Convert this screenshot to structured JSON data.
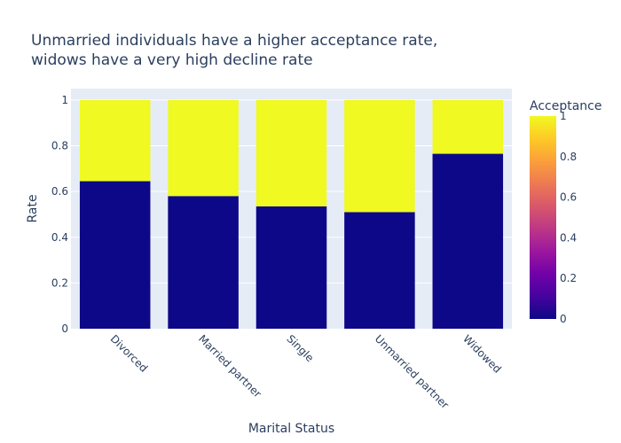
{
  "chart_data": {
    "type": "bar",
    "stacked": true,
    "title_lines": [
      "Unmarried individuals have a higher acceptance rate,",
      "widows have a very high decline rate"
    ],
    "xlabel": "Marital Status",
    "ylabel": "Rate",
    "ylim": [
      0,
      1.05
    ],
    "y_ticks": [
      0,
      0.2,
      0.4,
      0.6,
      0.8,
      1
    ],
    "grid": true,
    "categories": [
      "Divorced",
      "Married partner",
      "Single",
      "Unmarried partner",
      "Widowed"
    ],
    "series": [
      {
        "acceptance": 0,
        "values": [
          0.645,
          0.58,
          0.535,
          0.51,
          0.765
        ],
        "color": "#0d0887"
      },
      {
        "acceptance": 1,
        "values": [
          0.355,
          0.42,
          0.465,
          0.49,
          0.235
        ],
        "color": "#f0f921"
      }
    ],
    "colorbar": {
      "title": "Acceptance",
      "ticks": [
        "0",
        "0.2",
        "0.4",
        "0.6",
        "0.8",
        "1"
      ],
      "tick_values": [
        0,
        0.2,
        0.4,
        0.6,
        0.8,
        1
      ],
      "colorscale": [
        "#0d0887",
        "#46039f",
        "#7201a8",
        "#9c179e",
        "#bd3786",
        "#d8576b",
        "#ed7953",
        "#fb9f3a",
        "#fdca26",
        "#f0f921"
      ]
    },
    "plot_background": "#e5ecf6",
    "text_color": "#2a3f5f"
  }
}
